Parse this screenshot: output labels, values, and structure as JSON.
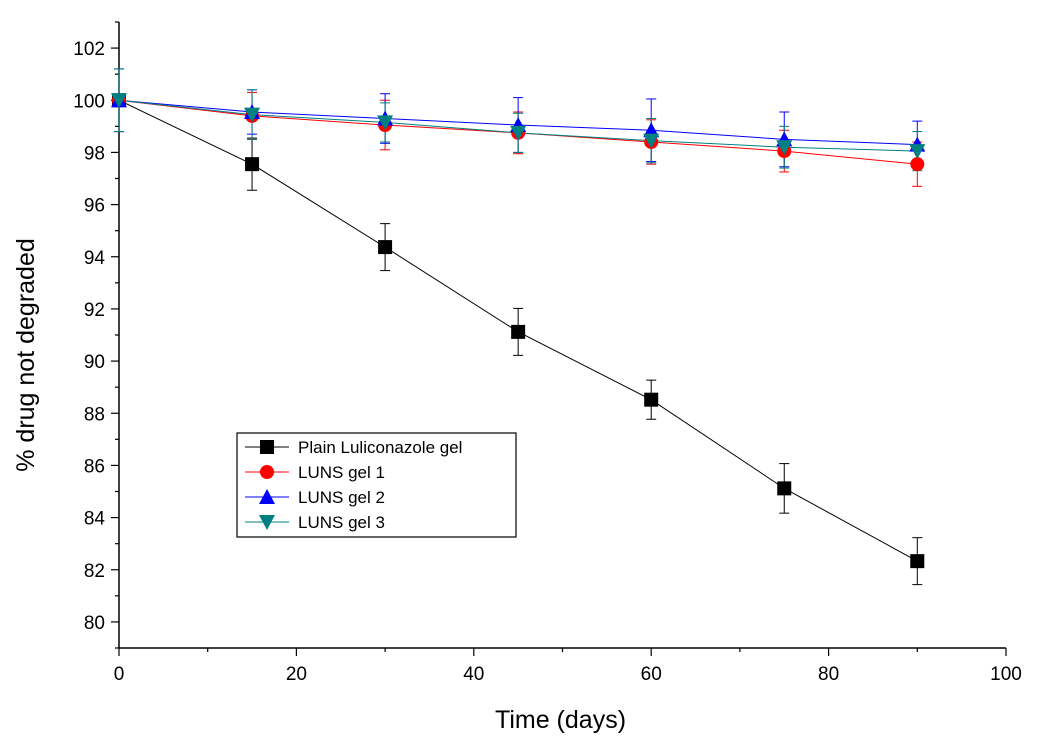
{
  "chart_data": {
    "type": "line",
    "xlabel": "Time (days)",
    "ylabel": "% drug not degraded",
    "xlim": [
      0,
      100
    ],
    "ylim": [
      79,
      103
    ],
    "x_ticks": [
      0,
      20,
      40,
      60,
      80,
      100
    ],
    "y_ticks": [
      80,
      82,
      84,
      86,
      88,
      90,
      92,
      94,
      96,
      98,
      100,
      102
    ],
    "grid": false,
    "legend_position": "lower-left",
    "x": [
      0,
      15,
      30,
      45,
      60,
      75,
      90
    ],
    "series": [
      {
        "name": "Plain Luliconazole gel",
        "marker": "square",
        "color": "#000000",
        "values": [
          100.0,
          97.55,
          94.37,
          91.12,
          88.52,
          85.12,
          82.33
        ],
        "errors": [
          1.2,
          1.0,
          0.9,
          0.9,
          0.75,
          0.95,
          0.9
        ]
      },
      {
        "name": "LUNS gel 1",
        "marker": "circle",
        "color": "#ff0000",
        "values": [
          100.0,
          99.4,
          99.05,
          98.75,
          98.4,
          98.05,
          97.55
        ],
        "errors": [
          1.2,
          0.9,
          0.95,
          0.8,
          0.85,
          0.8,
          0.85
        ]
      },
      {
        "name": "LUNS gel 2",
        "marker": "triangle-up",
        "color": "#0000ff",
        "values": [
          100.0,
          99.55,
          99.3,
          99.05,
          98.85,
          98.5,
          98.3
        ],
        "errors": [
          1.2,
          0.85,
          0.95,
          1.05,
          1.2,
          1.05,
          0.9
        ]
      },
      {
        "name": "LUNS gel 3",
        "marker": "triangle-down",
        "color": "#008080",
        "values": [
          100.0,
          99.45,
          99.15,
          98.75,
          98.45,
          98.2,
          98.05
        ],
        "errors": [
          1.2,
          0.95,
          0.75,
          0.75,
          0.85,
          0.8,
          0.75
        ]
      }
    ]
  }
}
